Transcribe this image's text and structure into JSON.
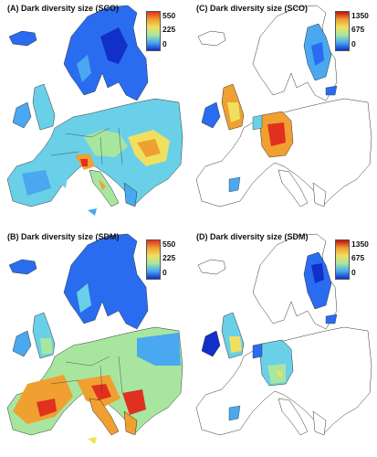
{
  "panels": [
    {
      "id": "A",
      "title": "(A) Dark diversity size (SCO)",
      "legend": {
        "max": "550",
        "mid": "225",
        "min": "0"
      }
    },
    {
      "id": "C",
      "title": "(C) Dark diversity size (SCO)",
      "legend": {
        "max": "1350",
        "mid": "675",
        "min": "0"
      }
    },
    {
      "id": "B",
      "title": "(B) Dark diversity size (SDM)",
      "legend": {
        "max": "550",
        "mid": "225",
        "min": "0"
      }
    },
    {
      "id": "D",
      "title": "(D) Dark diversity size (SDM)",
      "legend": {
        "max": "1350",
        "mid": "675",
        "min": "0"
      }
    }
  ],
  "colors": {
    "scale": [
      "#1030c8",
      "#2a6cf0",
      "#4aa8f0",
      "#6ad0e8",
      "#a8e6a0",
      "#f0e060",
      "#f0a030",
      "#e03020",
      "#c01010"
    ],
    "outline": "#333333"
  }
}
